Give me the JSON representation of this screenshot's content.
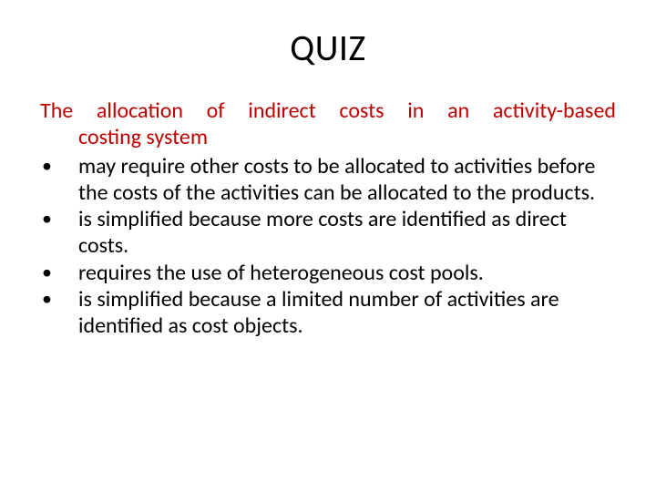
{
  "slide": {
    "title": "QUIZ",
    "question_line1": "The allocation of indirect costs in an activity-based",
    "question_line2": "costing system",
    "options": [
      "may require other costs to be allocated to activities before the costs of the activities can be allocated to the products.",
      "is simplified because more costs are identified as direct costs.",
      "requires the use of heterogeneous cost pools.",
      "is simplified because a limited number of activities are identified as cost objects."
    ],
    "colors": {
      "title": "#000000",
      "question": "#c00000",
      "options": "#000000",
      "background": "#ffffff"
    },
    "typography": {
      "title_fontsize": 40,
      "body_fontsize": 24,
      "font_family": "Calibri"
    }
  }
}
